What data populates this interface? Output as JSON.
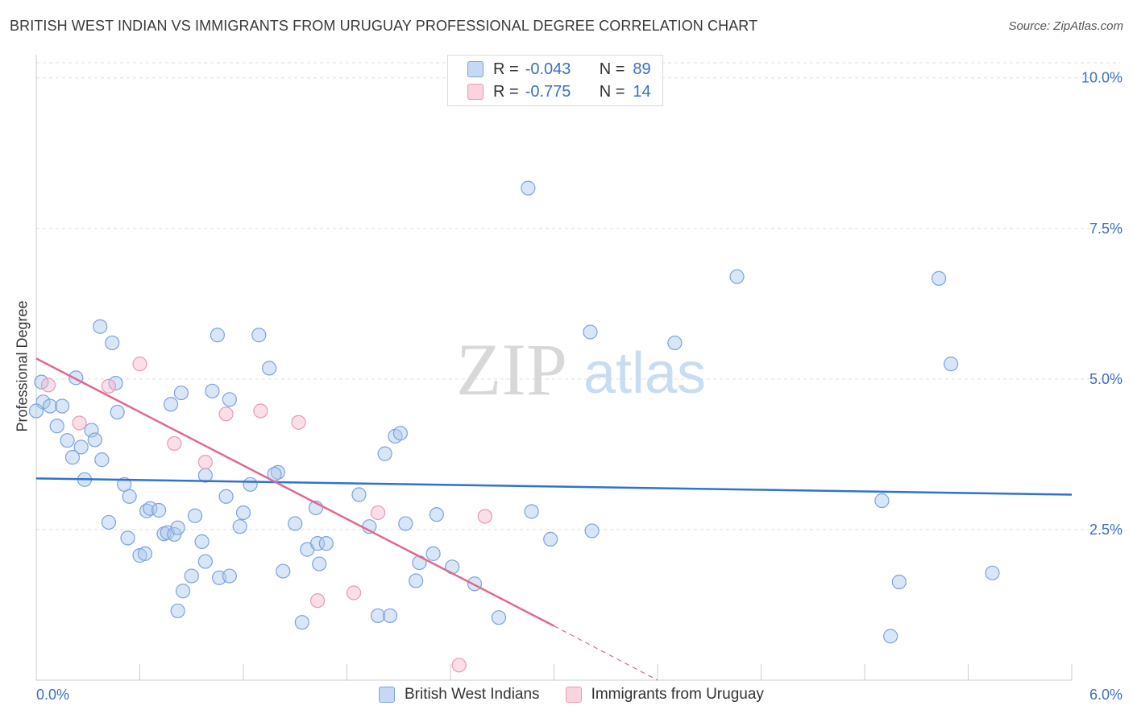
{
  "header": {
    "title": "BRITISH WEST INDIAN VS IMMIGRANTS FROM URUGUAY PROFESSIONAL DEGREE CORRELATION CHART",
    "source": "Source: ZipAtlas.com"
  },
  "watermark": {
    "zip": "ZIP",
    "atlas": "atlas"
  },
  "legend_top": {
    "rows": [
      {
        "r_label": "R =",
        "r_value": "-0.043",
        "n_label": "N =",
        "n_value": "89",
        "color": "#aac8f0"
      },
      {
        "r_label": "R =",
        "r_value": "-0.775",
        "n_label": "N =",
        "n_value": "14",
        "color": "#f5b8cb"
      }
    ]
  },
  "legend_bottom": {
    "items": [
      {
        "label": "British West Indians",
        "color": "#aac8f0"
      },
      {
        "label": "Immigrants from Uruguay",
        "color": "#f5b8cb"
      }
    ]
  },
  "colors": {
    "blue_fill": "rgba(170,200,240,0.45)",
    "blue_stroke": "#7ba3dc",
    "blue_line": "#2f72cf",
    "pink_fill": "rgba(245,184,203,0.45)",
    "pink_stroke": "#e89ab3",
    "pink_line": "#e0698f",
    "axis_text": "#3b6fc4",
    "grid": "#dddddd"
  },
  "chart_data": {
    "type": "scatter",
    "title": "BRITISH WEST INDIAN VS IMMIGRANTS FROM URUGUAY PROFESSIONAL DEGREE CORRELATION CHART",
    "xlabel": "",
    "ylabel": "Professional Degree",
    "xlim": [
      0,
      6
    ],
    "ylim": [
      0,
      10.25
    ],
    "x_tick_labels": [
      "0.0%",
      "6.0%"
    ],
    "y_ticks": [
      2.5,
      5.0,
      7.5,
      10.0
    ],
    "y_tick_labels": [
      "2.5%",
      "5.0%",
      "7.5%",
      "10.0%"
    ],
    "grid": true,
    "series": [
      {
        "name": "British West Indians",
        "points": [
          [
            0.04,
            4.62
          ],
          [
            0.08,
            4.55
          ],
          [
            0.15,
            4.55
          ],
          [
            0.12,
            4.22
          ],
          [
            0.23,
            5.02
          ],
          [
            0.18,
            3.98
          ],
          [
            0.26,
            3.87
          ],
          [
            0.21,
            3.7
          ],
          [
            0.32,
            4.15
          ],
          [
            0.34,
            3.99
          ],
          [
            0.28,
            3.33
          ],
          [
            0.38,
            3.66
          ],
          [
            0.37,
            5.87
          ],
          [
            0.44,
            5.6
          ],
          [
            0.46,
            4.93
          ],
          [
            0.47,
            4.45
          ],
          [
            0.51,
            3.25
          ],
          [
            0.54,
            3.05
          ],
          [
            0.42,
            2.62
          ],
          [
            0.53,
            2.36
          ],
          [
            0.6,
            2.07
          ],
          [
            0.63,
            2.1
          ],
          [
            0.64,
            2.81
          ],
          [
            0.66,
            2.85
          ],
          [
            0.71,
            2.82
          ],
          [
            0.74,
            2.43
          ],
          [
            0.76,
            2.45
          ],
          [
            0.8,
            2.42
          ],
          [
            0.82,
            2.53
          ],
          [
            0.78,
            4.58
          ],
          [
            0.84,
            4.77
          ],
          [
            0.85,
            1.48
          ],
          [
            0.82,
            1.15
          ],
          [
            0.9,
            1.73
          ],
          [
            0.92,
            2.73
          ],
          [
            0.96,
            2.3
          ],
          [
            0.98,
            1.97
          ],
          [
            0.98,
            3.4
          ],
          [
            1.02,
            4.8
          ],
          [
            1.05,
            5.73
          ],
          [
            1.06,
            1.7
          ],
          [
            1.1,
            3.05
          ],
          [
            1.12,
            4.66
          ],
          [
            1.12,
            1.73
          ],
          [
            1.18,
            2.55
          ],
          [
            1.2,
            2.78
          ],
          [
            1.24,
            3.25
          ],
          [
            1.29,
            5.73
          ],
          [
            1.35,
            5.18
          ],
          [
            1.4,
            3.45
          ],
          [
            1.38,
            3.42
          ],
          [
            1.43,
            1.81
          ],
          [
            1.5,
            2.6
          ],
          [
            1.54,
            0.96
          ],
          [
            1.57,
            2.17
          ],
          [
            1.63,
            2.27
          ],
          [
            1.64,
            1.93
          ],
          [
            1.68,
            2.27
          ],
          [
            1.62,
            2.86
          ],
          [
            1.87,
            3.08
          ],
          [
            1.93,
            2.55
          ],
          [
            1.98,
            1.07
          ],
          [
            2.05,
            1.07
          ],
          [
            2.02,
            3.76
          ],
          [
            2.08,
            4.05
          ],
          [
            2.11,
            4.1
          ],
          [
            2.14,
            2.6
          ],
          [
            2.2,
            1.65
          ],
          [
            2.22,
            1.95
          ],
          [
            2.3,
            2.1
          ],
          [
            2.32,
            2.75
          ],
          [
            2.41,
            1.88
          ],
          [
            2.54,
            1.6
          ],
          [
            2.68,
            1.04
          ],
          [
            2.85,
            8.17
          ],
          [
            2.87,
            2.8
          ],
          [
            2.98,
            2.34
          ],
          [
            3.21,
            5.78
          ],
          [
            3.22,
            2.48
          ],
          [
            3.7,
            5.6
          ],
          [
            4.06,
            6.7
          ],
          [
            4.9,
            2.98
          ],
          [
            4.95,
            0.73
          ],
          [
            5.0,
            1.63
          ],
          [
            5.23,
            6.67
          ],
          [
            5.3,
            5.25
          ],
          [
            5.54,
            1.78
          ],
          [
            0.0,
            4.47
          ],
          [
            0.03,
            4.95
          ]
        ]
      },
      {
        "name": "Immigrants from Uruguay",
        "points": [
          [
            0.07,
            4.9
          ],
          [
            0.25,
            4.27
          ],
          [
            0.42,
            4.88
          ],
          [
            0.6,
            5.25
          ],
          [
            0.8,
            3.93
          ],
          [
            0.98,
            3.62
          ],
          [
            1.1,
            4.42
          ],
          [
            1.3,
            4.47
          ],
          [
            1.52,
            4.28
          ],
          [
            1.63,
            1.32
          ],
          [
            1.84,
            1.45
          ],
          [
            1.98,
            2.78
          ],
          [
            2.45,
            0.25
          ],
          [
            2.6,
            2.72
          ]
        ]
      }
    ],
    "trendlines": [
      {
        "series": "British West Indians",
        "x": [
          0.0,
          6.0
        ],
        "y": [
          3.35,
          3.08
        ]
      },
      {
        "series": "Immigrants from Uruguay",
        "x": [
          0.0,
          3.0
        ],
        "y": [
          5.34,
          0.9
        ],
        "dashed_extension": {
          "x": [
            3.0,
            3.6
          ],
          "y": [
            0.9,
            0.0
          ]
        }
      }
    ]
  }
}
